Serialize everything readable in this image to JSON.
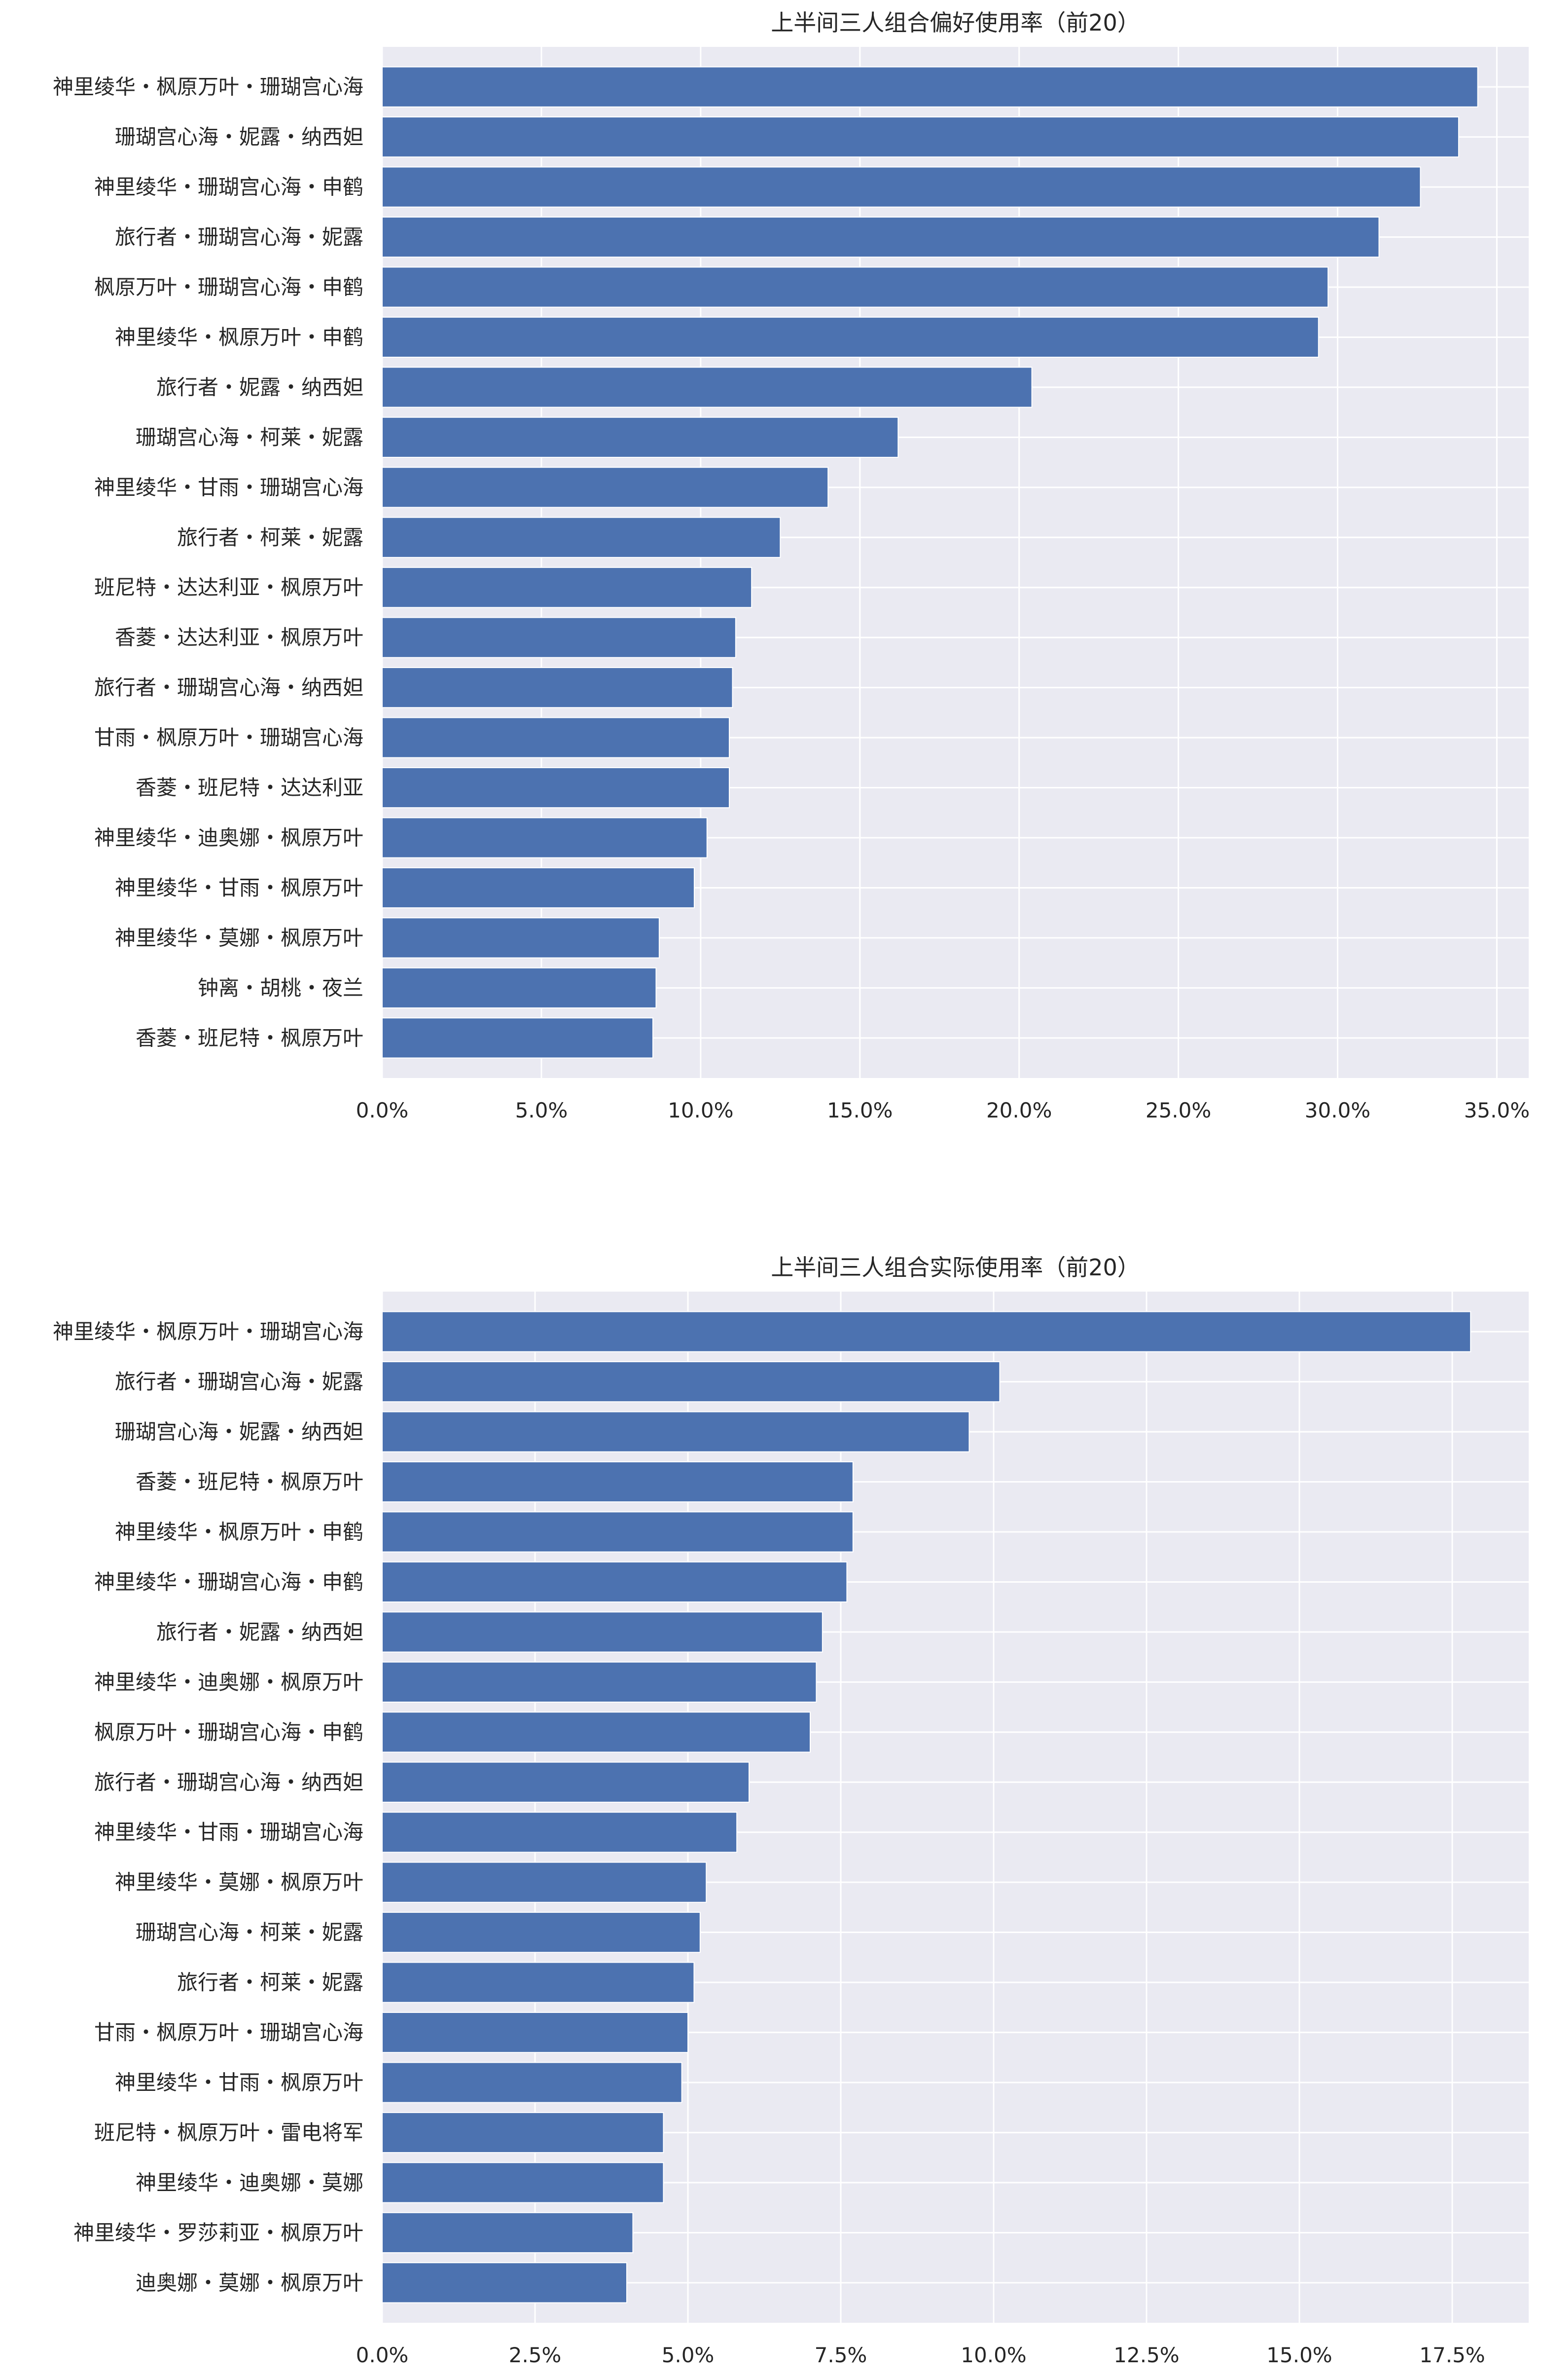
{
  "chart_data": [
    {
      "type": "bar",
      "orientation": "horizontal",
      "title": "上半间三人组合偏好使用率（前20）",
      "xlim": [
        0,
        0.36
      ],
      "x_ticks": [
        0,
        0.05,
        0.1,
        0.15,
        0.2,
        0.25,
        0.3,
        0.35
      ],
      "x_tick_labels": [
        "0.0%",
        "5.0%",
        "10.0%",
        "15.0%",
        "20.0%",
        "25.0%",
        "30.0%",
        "35.0%"
      ],
      "grid": true,
      "bar_color": "#4c72b0",
      "background": "#eaeaf2",
      "categories": [
        "神里绫华・枫原万叶・珊瑚宫心海",
        "珊瑚宫心海・妮露・纳西妲",
        "神里绫华・珊瑚宫心海・申鹤",
        "旅行者・珊瑚宫心海・妮露",
        "枫原万叶・珊瑚宫心海・申鹤",
        "神里绫华・枫原万叶・申鹤",
        "旅行者・妮露・纳西妲",
        "珊瑚宫心海・柯莱・妮露",
        "神里绫华・甘雨・珊瑚宫心海",
        "旅行者・柯莱・妮露",
        "班尼特・达达利亚・枫原万叶",
        "香菱・达达利亚・枫原万叶",
        "旅行者・珊瑚宫心海・纳西妲",
        "甘雨・枫原万叶・珊瑚宫心海",
        "香菱・班尼特・达达利亚",
        "神里绫华・迪奥娜・枫原万叶",
        "神里绫华・甘雨・枫原万叶",
        "神里绫华・莫娜・枫原万叶",
        "钟离・胡桃・夜兰",
        "香菱・班尼特・枫原万叶"
      ],
      "values": [
        0.344,
        0.338,
        0.326,
        0.313,
        0.297,
        0.294,
        0.204,
        0.162,
        0.14,
        0.125,
        0.116,
        0.111,
        0.11,
        0.109,
        0.109,
        0.102,
        0.098,
        0.087,
        0.086,
        0.085
      ]
    },
    {
      "type": "bar",
      "orientation": "horizontal",
      "title": "上半间三人组合实际使用率（前20）",
      "xlim": [
        0,
        0.1875
      ],
      "x_ticks": [
        0,
        0.025,
        0.05,
        0.075,
        0.1,
        0.125,
        0.15,
        0.175
      ],
      "x_tick_labels": [
        "0.0%",
        "2.5%",
        "5.0%",
        "7.5%",
        "10.0%",
        "12.5%",
        "15.0%",
        "17.5%"
      ],
      "grid": true,
      "bar_color": "#4c72b0",
      "background": "#eaeaf2",
      "categories": [
        "神里绫华・枫原万叶・珊瑚宫心海",
        "旅行者・珊瑚宫心海・妮露",
        "珊瑚宫心海・妮露・纳西妲",
        "香菱・班尼特・枫原万叶",
        "神里绫华・枫原万叶・申鹤",
        "神里绫华・珊瑚宫心海・申鹤",
        "旅行者・妮露・纳西妲",
        "神里绫华・迪奥娜・枫原万叶",
        "枫原万叶・珊瑚宫心海・申鹤",
        "旅行者・珊瑚宫心海・纳西妲",
        "神里绫华・甘雨・珊瑚宫心海",
        "神里绫华・莫娜・枫原万叶",
        "珊瑚宫心海・柯莱・妮露",
        "旅行者・柯莱・妮露",
        "甘雨・枫原万叶・珊瑚宫心海",
        "神里绫华・甘雨・枫原万叶",
        "班尼特・枫原万叶・雷电将军",
        "神里绫华・迪奥娜・莫娜",
        "神里绫华・罗莎莉亚・枫原万叶",
        "迪奥娜・莫娜・枫原万叶"
      ],
      "values": [
        0.178,
        0.101,
        0.096,
        0.077,
        0.077,
        0.076,
        0.072,
        0.071,
        0.07,
        0.06,
        0.058,
        0.053,
        0.052,
        0.051,
        0.05,
        0.049,
        0.046,
        0.046,
        0.041,
        0.04
      ]
    }
  ]
}
